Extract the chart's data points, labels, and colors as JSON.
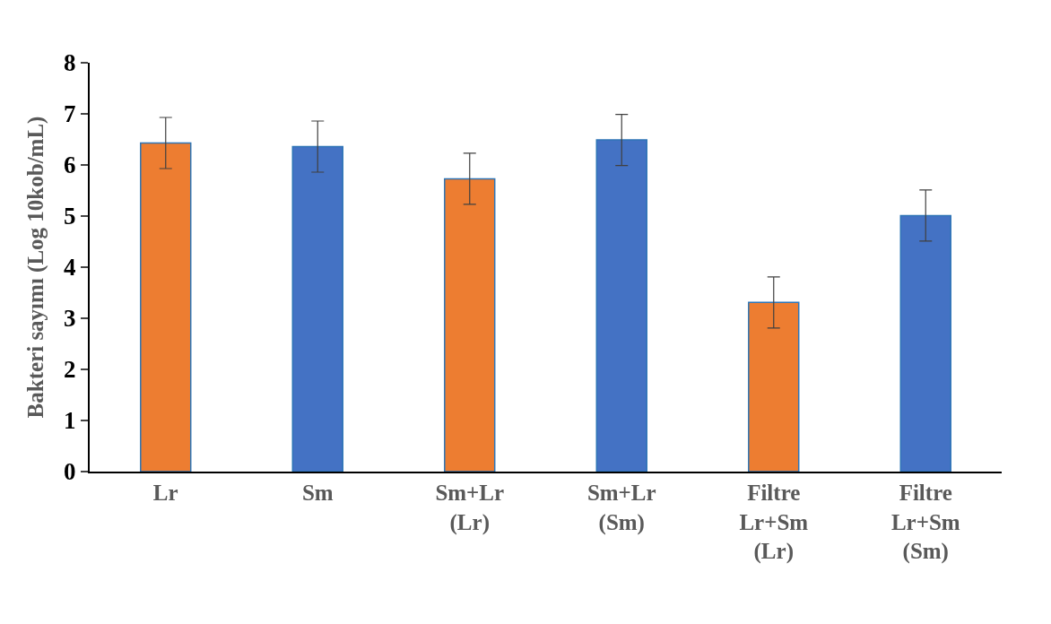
{
  "chart_data": {
    "type": "bar",
    "ylabel": "Bakteri sayımı (Log 10kob/mL)",
    "categories": [
      "Lr",
      "Sm",
      "Sm+Lr\n(Lr)",
      "Sm+Lr\n(Sm)",
      "Filtre\nLr+Sm\n(Lr)",
      "Filtre\nLr+Sm\n(Sm)"
    ],
    "values": [
      6.43,
      6.36,
      5.73,
      6.49,
      3.31,
      5.01
    ],
    "errors": [
      0.5,
      0.5,
      0.5,
      0.5,
      0.5,
      0.5
    ],
    "colors": [
      "#ed7d31",
      "#4472c4",
      "#ed7d31",
      "#4472c4",
      "#ed7d31",
      "#4472c4"
    ],
    "ylim": [
      0,
      8
    ],
    "yticks": [
      0,
      1,
      2,
      3,
      4,
      5,
      6,
      7,
      8
    ]
  }
}
